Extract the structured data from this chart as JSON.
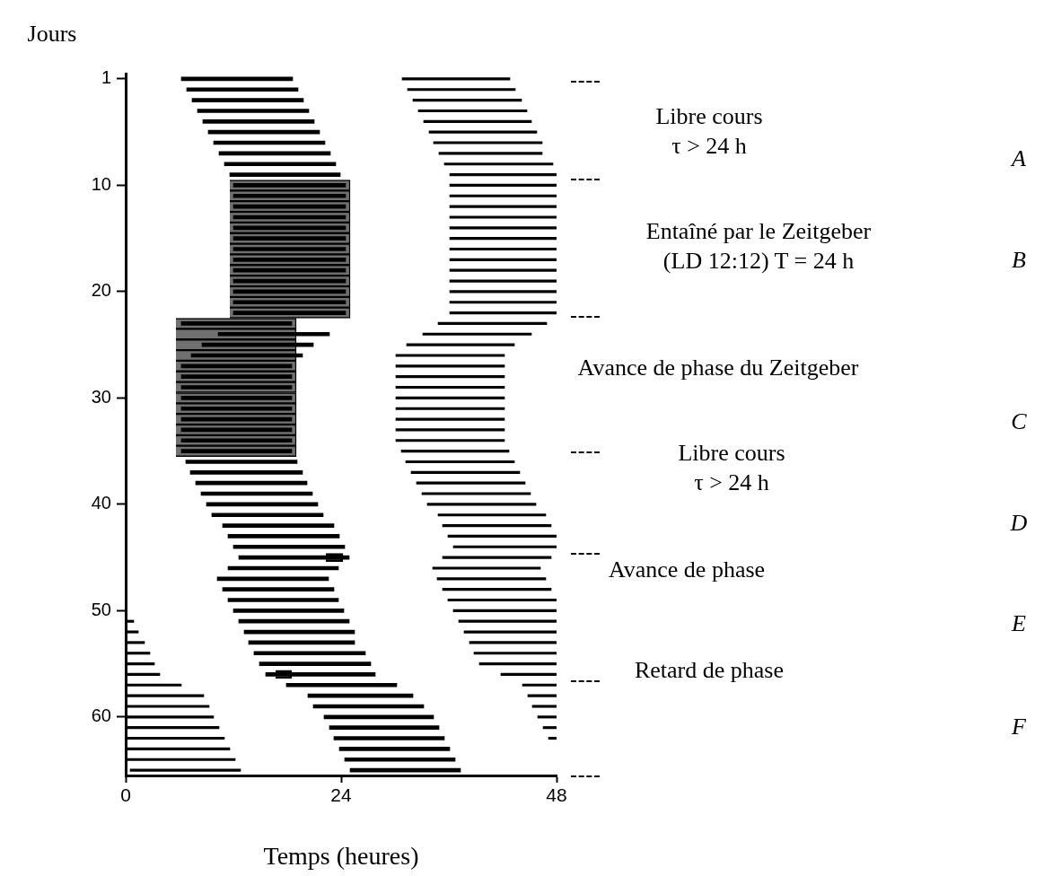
{
  "chart_data": {
    "type": "bar",
    "orientation": "horizontal",
    "ylabel": "Jours",
    "xlabel": "Temps (heures)",
    "categories": [
      "1",
      null,
      null,
      null,
      null,
      null,
      null,
      null,
      null,
      null,
      "10",
      null,
      null,
      null,
      null,
      null,
      null,
      null,
      null,
      null,
      "20",
      null,
      null,
      null,
      null,
      null,
      null,
      null,
      null,
      null,
      "30",
      null,
      null,
      null,
      null,
      null,
      null,
      null,
      null,
      null,
      "40",
      null,
      null,
      null,
      null,
      null,
      null,
      null,
      null,
      null,
      "50",
      null,
      null,
      null,
      null,
      null,
      null,
      null,
      null,
      null,
      "60",
      null,
      null,
      null,
      null,
      null
    ],
    "xlim": [
      0,
      48
    ],
    "xticks": [
      0,
      24,
      48
    ],
    "legend": false,
    "grid": false,
    "series": [
      {
        "color": "#707070",
        "base": [
          null,
          null,
          null,
          null,
          null,
          null,
          null,
          null,
          null,
          null,
          11.6,
          11.6,
          11.6,
          11.6,
          11.6,
          11.6,
          11.6,
          11.6,
          11.6,
          11.6,
          11.6,
          11.6,
          11.6,
          5.6,
          5.6,
          5.6,
          5.6,
          5.6,
          5.6,
          5.6,
          5.6,
          5.6,
          5.6,
          5.6,
          5.6,
          5.6,
          null,
          null,
          null,
          null,
          null,
          null,
          null,
          null,
          null,
          null,
          null,
          null,
          null,
          null,
          null,
          null,
          null,
          null,
          null,
          null,
          null,
          null,
          null,
          null,
          null,
          null,
          null,
          null,
          null,
          null
        ],
        "values": [
          null,
          null,
          null,
          null,
          null,
          null,
          null,
          null,
          null,
          null,
          13.4,
          13.4,
          13.4,
          13.4,
          13.4,
          13.4,
          13.4,
          13.4,
          13.4,
          13.4,
          13.4,
          13.4,
          13.4,
          13.4,
          13.4,
          13.4,
          13.4,
          13.4,
          13.4,
          13.4,
          13.4,
          13.4,
          13.4,
          13.4,
          13.4,
          13.4,
          null,
          null,
          null,
          null,
          null,
          null,
          null,
          null,
          null,
          null,
          null,
          null,
          null,
          null,
          null,
          null,
          null,
          null,
          null,
          null,
          null,
          null,
          null,
          null,
          null,
          null,
          null,
          null,
          null,
          null
        ]
      },
      {
        "color": "#000000",
        "base": [
          6.2,
          6.8,
          7.4,
          8.0,
          8.6,
          9.2,
          9.8,
          10.4,
          11.0,
          11.6,
          12.0,
          12.0,
          12.0,
          12.0,
          12.0,
          12.0,
          12.0,
          12.0,
          12.0,
          12.0,
          12.0,
          12.0,
          12.0,
          6.2,
          10.3,
          8.5,
          7.3,
          6.2,
          6.2,
          6.2,
          6.2,
          6.2,
          6.2,
          6.2,
          6.2,
          6.2,
          6.7,
          7.2,
          7.8,
          8.4,
          9.0,
          9.6,
          10.8,
          11.4,
          12.0,
          12.6,
          11.4,
          10.2,
          10.8,
          11.4,
          12.0,
          12.6,
          13.2,
          13.7,
          14.3,
          14.9,
          15.6,
          17.9,
          20.3,
          20.9,
          22.1,
          22.7,
          23.2,
          23.8,
          24.4,
          25.0
        ],
        "values": [
          12.4,
          12.4,
          12.4,
          12.4,
          12.4,
          12.4,
          12.4,
          12.4,
          12.4,
          12.3,
          12.5,
          12.5,
          12.5,
          12.5,
          12.5,
          12.5,
          12.5,
          12.5,
          12.5,
          12.5,
          12.5,
          12.5,
          12.5,
          12.3,
          12.4,
          12.4,
          12.4,
          12.3,
          12.3,
          12.3,
          12.3,
          12.3,
          12.3,
          12.3,
          12.3,
          12.3,
          12.4,
          12.5,
          12.4,
          12.4,
          12.4,
          12.4,
          12.4,
          12.4,
          12.4,
          12.3,
          12.3,
          12.4,
          12.4,
          12.3,
          12.3,
          12.3,
          12.3,
          11.8,
          12.4,
          12.4,
          12.2,
          12.3,
          11.7,
          12.3,
          12.2,
          12.2,
          12.3,
          12.3,
          12.3,
          12.3
        ]
      },
      {
        "color": "#000000",
        "base": [
          30.8,
          31.4,
          32.0,
          32.6,
          33.2,
          33.8,
          34.3,
          34.9,
          35.5,
          36.1,
          36.1,
          36.1,
          36.1,
          36.1,
          36.1,
          36.1,
          36.1,
          36.1,
          36.1,
          36.1,
          36.1,
          36.1,
          36.1,
          34.8,
          33.1,
          31.3,
          30.1,
          30.1,
          30.1,
          30.1,
          30.1,
          30.1,
          30.1,
          30.1,
          30.1,
          30.7,
          31.2,
          31.8,
          32.4,
          33.0,
          33.6,
          34.8,
          35.3,
          35.9,
          36.5,
          35.3,
          34.2,
          34.7,
          35.3,
          35.9,
          36.5,
          37.1,
          37.7,
          38.3,
          38.8,
          39.4,
          41.8,
          44.2,
          44.8,
          45.3,
          45.9,
          46.5,
          47.1,
          null,
          null,
          null
        ],
        "values": [
          12.0,
          12.0,
          12.1,
          12.1,
          12.0,
          12.0,
          12.1,
          11.5,
          12.1,
          11.9,
          11.9,
          11.9,
          11.9,
          11.9,
          11.9,
          11.9,
          11.9,
          11.9,
          11.9,
          11.9,
          11.9,
          11.9,
          11.9,
          12.1,
          12.1,
          12.0,
          12.1,
          12.1,
          12.1,
          12.1,
          12.1,
          12.1,
          12.1,
          12.1,
          12.1,
          12.0,
          12.1,
          12.1,
          12.1,
          12.1,
          12.1,
          12.0,
          12.1,
          12.1,
          11.5,
          12.1,
          12.0,
          12.1,
          12.1,
          12.1,
          11.5,
          10.9,
          10.3,
          9.7,
          9.2,
          8.6,
          6.2,
          3.8,
          3.2,
          2.7,
          2.1,
          1.5,
          0.9,
          null,
          null,
          null
        ]
      },
      {
        "color": "#000000",
        "base": [
          null,
          null,
          null,
          null,
          null,
          null,
          null,
          null,
          null,
          null,
          null,
          null,
          null,
          null,
          null,
          null,
          null,
          null,
          null,
          null,
          null,
          null,
          null,
          null,
          null,
          null,
          null,
          null,
          null,
          null,
          null,
          null,
          null,
          null,
          null,
          null,
          null,
          null,
          null,
          null,
          null,
          null,
          null,
          null,
          null,
          null,
          null,
          null,
          null,
          null,
          null,
          0,
          0,
          0,
          0,
          0,
          0,
          0,
          0,
          0,
          0,
          0,
          0,
          0,
          0,
          0.5
        ],
        "values": [
          null,
          null,
          null,
          null,
          null,
          null,
          null,
          null,
          null,
          null,
          null,
          null,
          null,
          null,
          null,
          null,
          null,
          null,
          null,
          null,
          null,
          null,
          null,
          null,
          null,
          null,
          null,
          null,
          null,
          null,
          null,
          null,
          null,
          null,
          null,
          null,
          null,
          null,
          null,
          null,
          null,
          null,
          null,
          null,
          null,
          null,
          null,
          null,
          null,
          null,
          null,
          0.9,
          1.4,
          2.1,
          2.7,
          3.2,
          3.8,
          6.2,
          8.7,
          9.3,
          9.8,
          10.4,
          11.0,
          11.6,
          12.2,
          12.3
        ]
      },
      {
        "color": "#000000",
        "base": [
          null,
          null,
          null,
          null,
          null,
          null,
          null,
          null,
          null,
          null,
          null,
          null,
          null,
          null,
          null,
          null,
          null,
          null,
          null,
          null,
          null,
          null,
          null,
          null,
          null,
          null,
          null,
          null,
          null,
          null,
          null,
          null,
          null,
          null,
          null,
          null,
          null,
          null,
          null,
          null,
          null,
          null,
          null,
          null,
          null,
          22.3,
          null,
          null,
          null,
          null,
          null,
          null,
          null,
          null,
          null,
          null,
          16.7,
          null,
          null,
          null,
          null,
          null,
          null,
          null,
          null,
          null
        ],
        "values": [
          null,
          null,
          null,
          null,
          null,
          null,
          null,
          null,
          null,
          null,
          null,
          null,
          null,
          null,
          null,
          null,
          null,
          null,
          null,
          null,
          null,
          null,
          null,
          null,
          null,
          null,
          null,
          null,
          null,
          null,
          null,
          null,
          null,
          null,
          null,
          null,
          null,
          null,
          null,
          null,
          null,
          null,
          null,
          null,
          null,
          1.9,
          null,
          null,
          null,
          null,
          null,
          null,
          null,
          null,
          null,
          null,
          1.8,
          null,
          null,
          null,
          null,
          null,
          null,
          null,
          null,
          null
        ]
      }
    ],
    "annotations": [
      "Libre cours",
      "τ > 24 h",
      "Entaîné par le Zeitgeber",
      "(LD 12:12) T = 24 h",
      "Avance de phase du Zeitgeber",
      "Libre cours",
      "τ > 24 h",
      "Avance de phase",
      "Retard de phase",
      "A",
      "B",
      "C",
      "D",
      "E",
      "F"
    ]
  }
}
